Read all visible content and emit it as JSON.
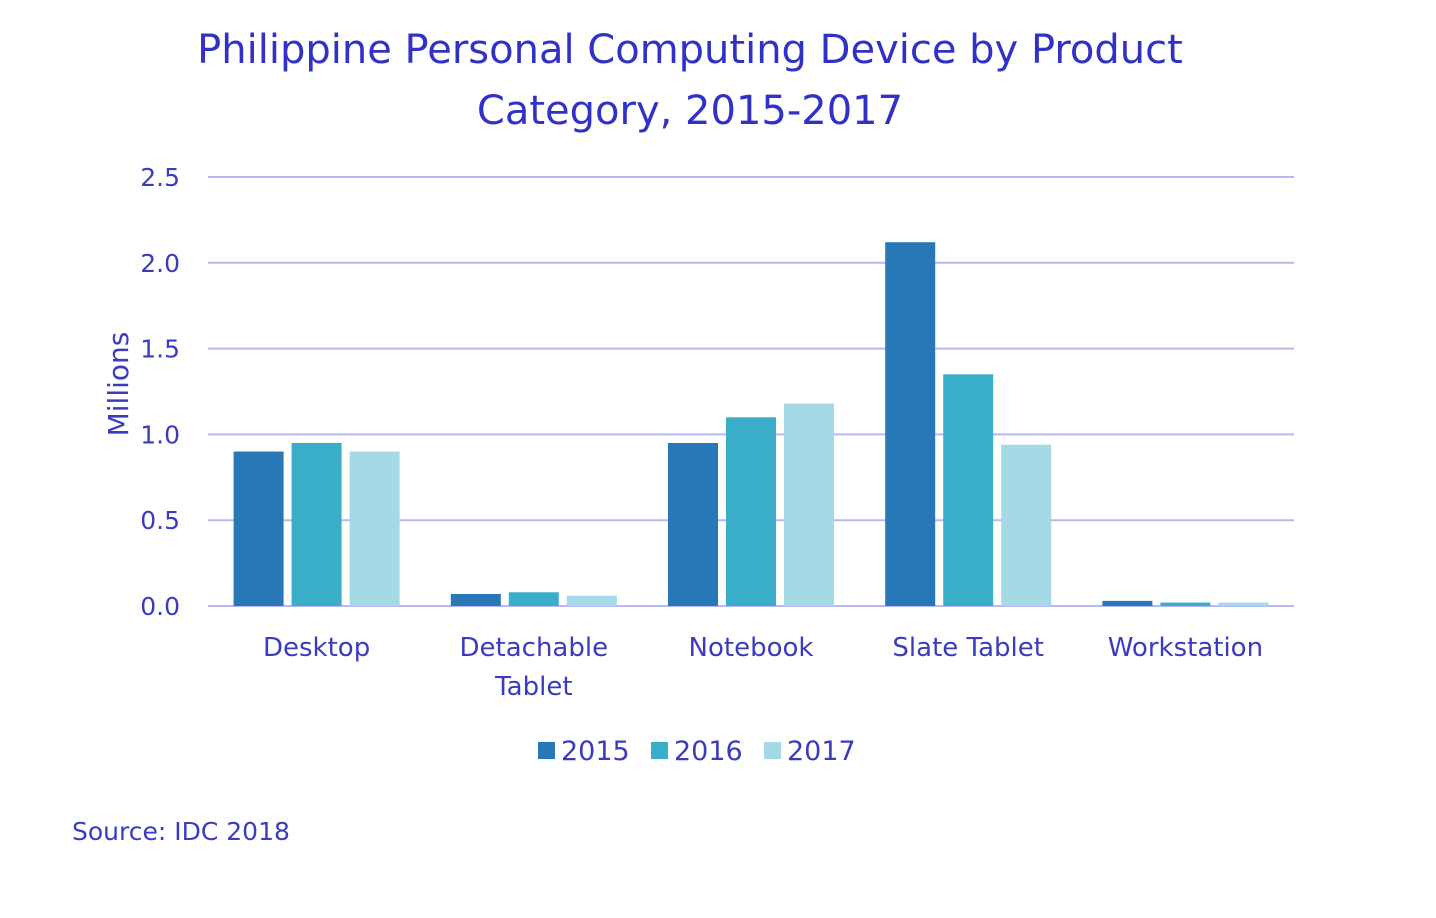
{
  "chart_data": {
    "type": "bar",
    "title": "Philippine Personal Computing Device by Product Category, 2015-2017",
    "title_lines": [
      "Philippine Personal Computing Device by Product",
      "Category, 2015-2017"
    ],
    "xlabel": "",
    "ylabel": "Millions",
    "ylim": [
      0,
      2.5
    ],
    "yticks": [
      "0.0",
      "0.5",
      "1.0",
      "1.5",
      "2.0",
      "2.5"
    ],
    "categories": [
      "Desktop",
      "Detachable Tablet",
      "Notebook",
      "Slate Tablet",
      "Workstation"
    ],
    "category_label_lines": [
      [
        "Desktop"
      ],
      [
        "Detachable",
        "Tablet"
      ],
      [
        "Notebook"
      ],
      [
        "Slate Tablet"
      ],
      [
        "Workstation"
      ]
    ],
    "series": [
      {
        "name": "2015",
        "values": [
          0.9,
          0.07,
          0.95,
          2.12,
          0.03
        ],
        "color": "#2878b8"
      },
      {
        "name": "2016",
        "values": [
          0.95,
          0.08,
          1.1,
          1.35,
          0.02
        ],
        "color": "#3aaec8"
      },
      {
        "name": "2017",
        "values": [
          0.9,
          0.06,
          1.18,
          0.94,
          0.02
        ],
        "color": "#a3dae5"
      }
    ],
    "grid": true,
    "legend_position": "bottom"
  },
  "source": "Source: IDC 2018",
  "colors": {
    "text": "#3b3bbf",
    "title": "#3131c8",
    "grid": "#b7b9f0"
  }
}
